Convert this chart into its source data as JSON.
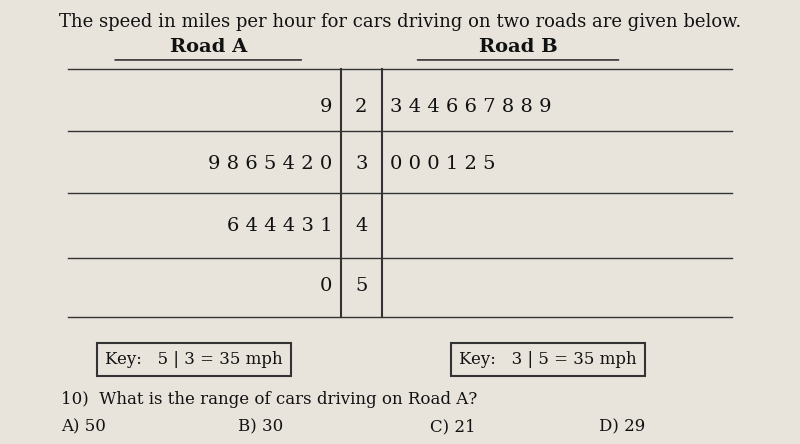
{
  "title": "The speed in miles per hour for cars driving on two roads are given below.",
  "road_a_label": "Road A",
  "road_b_label": "Road B",
  "stems": [
    "2",
    "3",
    "4",
    "5"
  ],
  "road_a_leaves": [
    [
      "9"
    ],
    [
      "9",
      "8",
      "6",
      "5",
      "4",
      "2",
      "0"
    ],
    [
      "6",
      "4",
      "4",
      "4",
      "3",
      "1"
    ],
    [
      "0"
    ]
  ],
  "road_b_leaves": [
    [
      "3",
      "4",
      "4",
      "6",
      "6",
      "7",
      "8",
      "8",
      "9"
    ],
    [
      "0",
      "0",
      "0",
      "1",
      "2",
      "5"
    ],
    [],
    []
  ],
  "key_a": "5 | 3 = 35 mph",
  "key_b": "3 | 5 = 35 mph",
  "question": "10)  What is the range of cars driving on Road A?",
  "answers": [
    "A) 50",
    "B) 30",
    "C) 21",
    "D) 29"
  ],
  "bg_color": "#e8e4dc",
  "text_color": "#111111",
  "line_color": "#333333",
  "title_fontsize": 13,
  "label_fontsize": 13,
  "data_fontsize": 13,
  "key_fontsize": 12,
  "question_fontsize": 12,
  "answer_fontsize": 12
}
